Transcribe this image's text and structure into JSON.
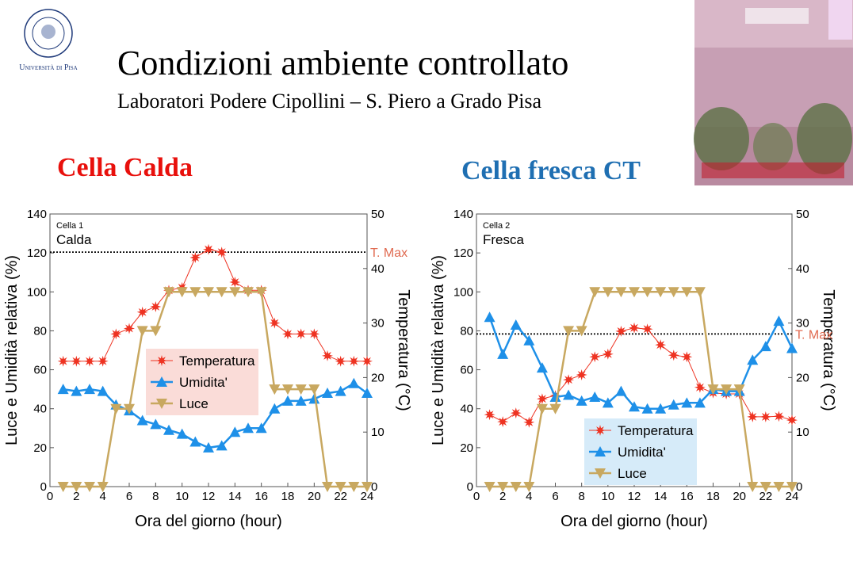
{
  "header": {
    "title": "Condizioni ambiente controllato",
    "subtitle": "Laboratori Podere Cipollini – S. Piero a Grado Pisa",
    "logo_text": "Università di Pisa"
  },
  "sections": [
    "Cella Calda",
    "Cella fresca CT"
  ],
  "chart_data": [
    {
      "type": "line",
      "cell_label": "Cella 1",
      "annotation": "Calda",
      "xlabel": "Ora del giorno (hour)",
      "ylabel": "Luce e Umidità relativa (%)",
      "y2label": "Temperatura (°C)",
      "xlim": [
        0,
        24
      ],
      "xticks": [
        0,
        2,
        4,
        6,
        8,
        10,
        12,
        14,
        16,
        18,
        20,
        22,
        24
      ],
      "ylim": [
        0,
        140
      ],
      "yticks": [
        0,
        20,
        40,
        60,
        80,
        100,
        120,
        140
      ],
      "y2lim": [
        0,
        50
      ],
      "y2ticks": [
        0,
        10,
        20,
        30,
        40,
        50
      ],
      "x": [
        1,
        2,
        3,
        4,
        5,
        6,
        7,
        8,
        9,
        10,
        11,
        12,
        13,
        14,
        15,
        16,
        17,
        18,
        19,
        20,
        21,
        22,
        23,
        24
      ],
      "series": [
        {
          "name": "Temperatura",
          "color": "#ee3322",
          "marker": "star",
          "axis": "y2",
          "values": [
            23,
            23,
            23,
            23,
            28,
            29,
            32,
            33,
            36,
            36.5,
            42,
            43.5,
            43,
            37.5,
            36,
            36,
            30,
            28,
            28,
            28,
            24,
            23,
            23,
            23
          ]
        },
        {
          "name": "Umidita'",
          "color": "#1e90e8",
          "marker": "triangle-up",
          "values": [
            50,
            49,
            50,
            49,
            42,
            39,
            34,
            32,
            29,
            27,
            23,
            20,
            21,
            28,
            30,
            30,
            40,
            44,
            44,
            45,
            48,
            49,
            53,
            48
          ]
        },
        {
          "name": "Luce",
          "color": "#c8a860",
          "marker": "triangle-down",
          "values": [
            0,
            0,
            0,
            0,
            40,
            40,
            80,
            80,
            100,
            100,
            100,
            100,
            100,
            100,
            100,
            100,
            50,
            50,
            50,
            50,
            0,
            0,
            0,
            0
          ]
        }
      ],
      "threshold": {
        "value": 43,
        "label": "T. Max",
        "axis": "y2"
      },
      "legend": "center",
      "legend_color": "#fadcd8"
    },
    {
      "type": "line",
      "cell_label": "Cella 2",
      "annotation": "Fresca",
      "xlabel": "Ora del giorno (hour)",
      "ylabel": "Luce e Umidità relativa (%)",
      "y2label": "Temperatura (°C)",
      "xlim": [
        0,
        24
      ],
      "xticks": [
        0,
        2,
        4,
        6,
        8,
        10,
        12,
        14,
        16,
        18,
        20,
        22,
        24
      ],
      "ylim": [
        0,
        140
      ],
      "yticks": [
        0,
        20,
        40,
        60,
        80,
        100,
        120,
        140
      ],
      "y2lim": [
        0,
        50
      ],
      "y2ticks": [
        0,
        10,
        20,
        30,
        40,
        50
      ],
      "x": [
        1,
        2,
        3,
        4,
        5,
        6,
        7,
        8,
        9,
        10,
        11,
        12,
        13,
        14,
        15,
        16,
        17,
        18,
        19,
        20,
        21,
        22,
        23,
        24
      ],
      "series": [
        {
          "name": "Temperatura",
          "color": "#ee3322",
          "marker": "star",
          "axis": "y2",
          "values": [
            13.2,
            11.9,
            13.5,
            11.8,
            16.1,
            16.7,
            19.6,
            20.5,
            23.8,
            24.3,
            28.5,
            29.1,
            28.9,
            26,
            24.1,
            23.8,
            18.2,
            17.2,
            17,
            17,
            12.8,
            12.8,
            12.9,
            12.2
          ]
        },
        {
          "name": "Umidita'",
          "color": "#1e90e8",
          "marker": "triangle-up",
          "values": [
            87,
            68,
            83,
            75,
            61,
            46,
            47,
            44,
            46,
            43,
            49,
            41,
            40,
            40,
            42,
            43,
            43,
            50,
            49,
            49,
            65,
            72,
            85,
            71
          ]
        },
        {
          "name": "Luce",
          "color": "#c8a860",
          "marker": "triangle-down",
          "values": [
            0,
            0,
            0,
            0,
            40,
            40,
            80,
            80,
            100,
            100,
            100,
            100,
            100,
            100,
            100,
            100,
            100,
            50,
            50,
            50,
            0,
            0,
            0,
            0
          ]
        }
      ],
      "threshold": {
        "value": 28,
        "label": "T. Max",
        "axis": "y2"
      },
      "legend": "lower center",
      "legend_color": "#d6ebf9"
    }
  ]
}
